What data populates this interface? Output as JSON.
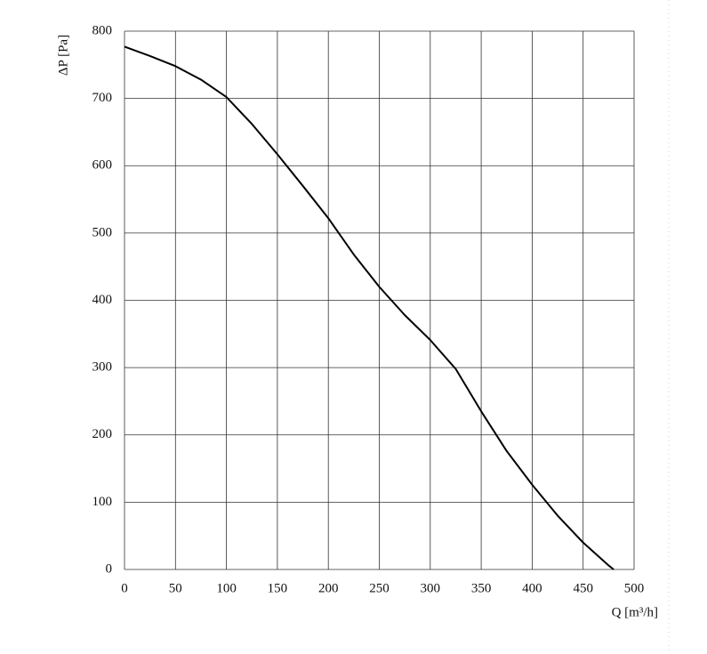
{
  "chart_data": {
    "type": "line",
    "x_label": "Q [m³/h]",
    "y_label": "ΔP [Pa]",
    "x": [
      0,
      25,
      50,
      75,
      100,
      125,
      150,
      175,
      200,
      225,
      250,
      275,
      300,
      325,
      350,
      375,
      400,
      425,
      450,
      475,
      480
    ],
    "series": [
      {
        "color": "#000000",
        "values": [
          777,
          763,
          748,
          728,
          702,
          662,
          617,
          570,
          522,
          468,
          420,
          378,
          341,
          298,
          235,
          176,
          126,
          80,
          40,
          6,
          0
        ]
      }
    ],
    "xlim": [
      0,
      500
    ],
    "xticks": [
      0,
      50,
      100,
      150,
      200,
      250,
      300,
      350,
      400,
      450,
      500
    ],
    "ylim": [
      0,
      800
    ],
    "yticks": [
      0,
      100,
      200,
      300,
      400,
      500,
      600,
      700,
      800
    ],
    "grid": true
  }
}
